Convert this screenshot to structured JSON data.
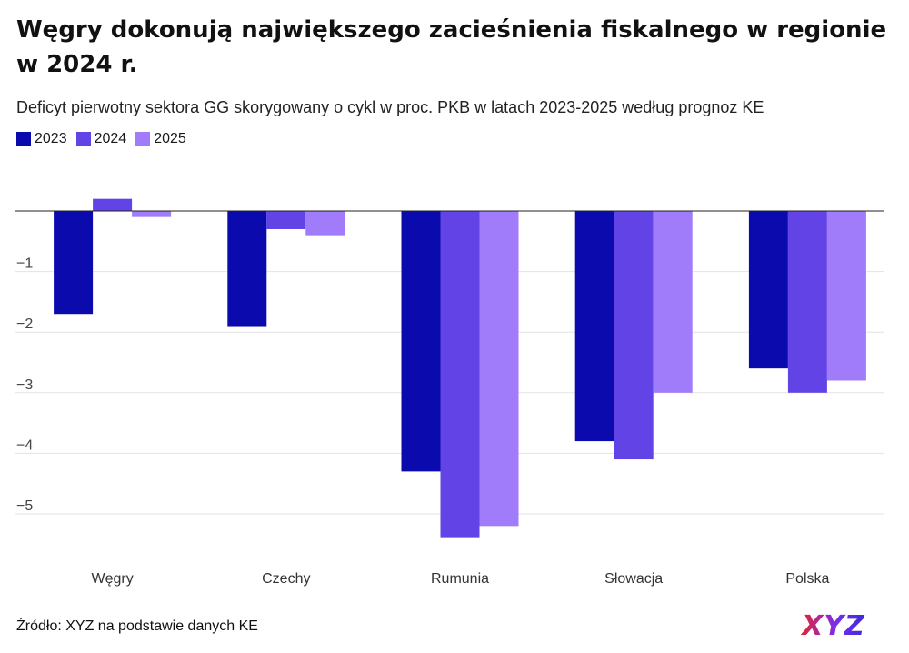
{
  "title": "Węgry dokonują największego zacieśnienia fiskalnego w regionie w 2024 r.",
  "subtitle": "Deficyt pierwotny sektora GG skorygowany o cykl w proc. PKB w latach 2023-2025 według prognoz KE",
  "source": "Źródło: XYZ na podstawie danych KE",
  "logo_text": "XYZ",
  "chart_data": {
    "type": "bar",
    "title": "Węgry dokonują największego zacieśnienia fiskalnego w regionie w 2024 r.",
    "xlabel": "",
    "ylabel": "",
    "categories": [
      "Węgry",
      "Czechy",
      "Rumunia",
      "Słowacja",
      "Polska"
    ],
    "series": [
      {
        "name": "2023",
        "color": "#0a0aad",
        "values": [
          -1.7,
          -1.9,
          -4.3,
          -3.8,
          -2.6
        ]
      },
      {
        "name": "2024",
        "color": "#6244e6",
        "values": [
          0.2,
          -0.3,
          -5.4,
          -4.1,
          -3.0
        ]
      },
      {
        "name": "2025",
        "color": "#a07cfa",
        "values": [
          -0.1,
          -0.4,
          -5.2,
          -3.0,
          -2.8
        ]
      }
    ],
    "yticks": [
      -5,
      -4,
      -3,
      -2,
      -1
    ],
    "ytick_labels": [
      "−5",
      "−4",
      "−3",
      "−2",
      "−1"
    ],
    "ylim": [
      -6,
      0.2
    ],
    "grid": true,
    "legend": "top-left"
  }
}
